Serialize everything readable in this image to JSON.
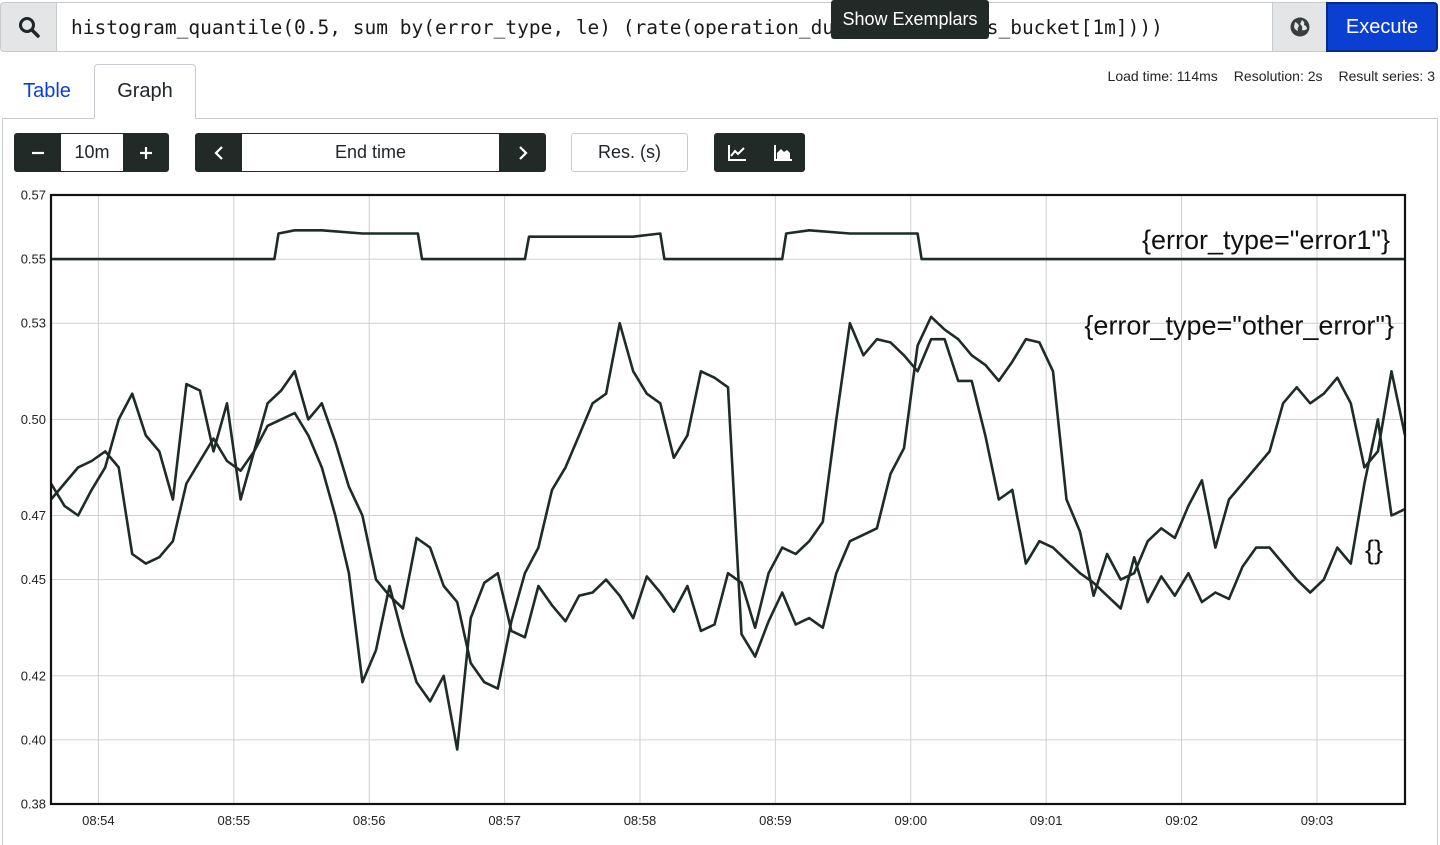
{
  "query": {
    "expression": "histogram_quantile(0.5, sum by(error_type, le) (rate(operation_duration_seconds_bucket[1m])))",
    "execute_label": "Execute"
  },
  "tabs": [
    {
      "label": "Table"
    },
    {
      "label": "Graph"
    }
  ],
  "stats": {
    "load_time": "Load time: 114ms",
    "resolution": "Resolution: 2s",
    "result_series": "Result series: 3"
  },
  "controls": {
    "range_value": "10m",
    "end_time_placeholder": "End time",
    "resolution_placeholder": "Res. (s)",
    "exemplars_label": "Show Exemplars"
  },
  "icons": {
    "search": "search-icon",
    "globe": "globe-icon",
    "minus": "minus-icon",
    "plus": "plus-icon",
    "prev": "chevron-left-icon",
    "next": "chevron-right-icon",
    "line": "line-chart-icon",
    "area": "area-chart-icon"
  },
  "colors": {
    "execute": "#0b3fd1",
    "tab_link": "#0b3fd1",
    "dark_button": "#222a28",
    "series_line": "#1f2b26"
  },
  "chart_data": {
    "type": "line",
    "ylim": [
      0.38,
      0.57
    ],
    "y_ticks": [
      0.57,
      0.55,
      0.53,
      0.5,
      0.47,
      0.45,
      0.42,
      0.4,
      0.38
    ],
    "y_tick_labels": [
      "0.57",
      "0.55",
      "0.53",
      "0.50",
      "0.47",
      "0.45",
      "0.42",
      "0.40",
      "0.38"
    ],
    "x_range": [
      "08:53:39",
      "08:53:49"
    ],
    "x_ticks": [
      "08:54",
      "08:55",
      "08:56",
      "08:57",
      "08:58",
      "08:59",
      "09:00",
      "09:01",
      "09:02",
      "09:03"
    ],
    "x_tick_minutes": [
      0.35,
      1.35,
      2.35,
      3.35,
      4.35,
      5.35,
      6.35,
      7.35,
      8.35,
      9.35
    ],
    "x_max_minutes": 10.0,
    "grid": true,
    "legend": "none",
    "series": [
      {
        "name": "{error_type=\"error1\"}",
        "t": [
          0.0,
          1.65,
          1.68,
          1.8,
          2.0,
          2.3,
          2.6,
          2.71,
          2.74,
          3.2,
          3.5,
          3.53,
          3.7,
          4.0,
          4.3,
          4.5,
          4.53,
          4.9,
          5.4,
          5.43,
          5.6,
          5.9,
          6.2,
          6.4,
          6.43,
          7.0,
          8.0,
          9.0,
          10.0
        ],
        "values": [
          0.55,
          0.55,
          0.558,
          0.559,
          0.559,
          0.558,
          0.558,
          0.558,
          0.55,
          0.55,
          0.55,
          0.557,
          0.557,
          0.557,
          0.557,
          0.558,
          0.55,
          0.55,
          0.55,
          0.558,
          0.559,
          0.558,
          0.558,
          0.558,
          0.55,
          0.55,
          0.55,
          0.55,
          0.55
        ]
      },
      {
        "name": "{error_type=\"other_error\"}",
        "t": [
          0.0,
          0.1,
          0.2,
          0.3,
          0.4,
          0.5,
          0.6,
          0.7,
          0.8,
          0.9,
          1.0,
          1.1,
          1.2,
          1.3,
          1.4,
          1.5,
          1.6,
          1.7,
          1.8,
          1.9,
          2.0,
          2.1,
          2.2,
          2.3,
          2.4,
          2.5,
          2.6,
          2.7,
          2.8,
          2.9,
          3.0,
          3.1,
          3.2,
          3.3,
          3.4,
          3.5,
          3.6,
          3.7,
          3.8,
          3.9,
          4.0,
          4.1,
          4.2,
          4.3,
          4.4,
          4.5,
          4.6,
          4.7,
          4.8,
          4.9,
          5.0,
          5.1,
          5.2,
          5.3,
          5.4,
          5.5,
          5.6,
          5.7,
          5.8,
          5.9,
          6.0,
          6.1,
          6.2,
          6.3,
          6.4,
          6.5,
          6.6,
          6.7,
          6.8,
          6.9,
          7.0,
          7.1,
          7.2,
          7.3,
          7.4,
          7.5,
          7.6,
          7.7,
          7.8,
          7.9,
          8.0,
          8.1,
          8.2,
          8.3,
          8.4,
          8.5,
          8.6,
          8.7,
          8.8,
          8.9,
          9.0,
          9.1,
          9.2,
          9.3,
          9.4,
          9.5,
          9.6,
          9.7,
          9.8,
          9.9,
          10.0
        ],
        "values": [
          0.475,
          0.48,
          0.485,
          0.487,
          0.49,
          0.485,
          0.458,
          0.455,
          0.457,
          0.462,
          0.48,
          0.487,
          0.494,
          0.487,
          0.484,
          0.49,
          0.498,
          0.5,
          0.502,
          0.495,
          0.485,
          0.47,
          0.452,
          0.418,
          0.428,
          0.448,
          0.432,
          0.418,
          0.412,
          0.42,
          0.397,
          0.438,
          0.449,
          0.452,
          0.434,
          0.432,
          0.448,
          0.442,
          0.437,
          0.445,
          0.446,
          0.45,
          0.445,
          0.438,
          0.451,
          0.446,
          0.44,
          0.448,
          0.434,
          0.436,
          0.452,
          0.449,
          0.435,
          0.452,
          0.46,
          0.458,
          0.462,
          0.468,
          0.5,
          0.53,
          0.52,
          0.525,
          0.524,
          0.52,
          0.515,
          0.525,
          0.525,
          0.512,
          0.512,
          0.495,
          0.475,
          0.478,
          0.455,
          0.462,
          0.46,
          0.456,
          0.452,
          0.449,
          0.445,
          0.441,
          0.457,
          0.443,
          0.451,
          0.445,
          0.452,
          0.443,
          0.446,
          0.444,
          0.454,
          0.46,
          0.46,
          0.455,
          0.45,
          0.446,
          0.45,
          0.46,
          0.455,
          0.48,
          0.5,
          0.47,
          0.472
        ]
      },
      {
        "name": "{}",
        "t": [
          0.0,
          0.1,
          0.2,
          0.3,
          0.4,
          0.5,
          0.6,
          0.7,
          0.8,
          0.9,
          1.0,
          1.1,
          1.2,
          1.3,
          1.4,
          1.5,
          1.6,
          1.7,
          1.8,
          1.9,
          2.0,
          2.1,
          2.2,
          2.3,
          2.4,
          2.5,
          2.6,
          2.7,
          2.8,
          2.9,
          3.0,
          3.1,
          3.2,
          3.3,
          3.4,
          3.5,
          3.6,
          3.7,
          3.8,
          3.9,
          4.0,
          4.1,
          4.2,
          4.3,
          4.4,
          4.5,
          4.6,
          4.7,
          4.8,
          4.9,
          5.0,
          5.1,
          5.2,
          5.3,
          5.4,
          5.5,
          5.6,
          5.7,
          5.8,
          5.9,
          6.0,
          6.1,
          6.2,
          6.3,
          6.4,
          6.5,
          6.6,
          6.7,
          6.8,
          6.9,
          7.0,
          7.1,
          7.2,
          7.3,
          7.4,
          7.5,
          7.6,
          7.7,
          7.8,
          7.9,
          8.0,
          8.1,
          8.2,
          8.3,
          8.4,
          8.5,
          8.6,
          8.7,
          8.8,
          8.9,
          9.0,
          9.1,
          9.2,
          9.3,
          9.4,
          9.5,
          9.6,
          9.7,
          9.8,
          9.9,
          10.0
        ],
        "values": [
          0.48,
          0.473,
          0.47,
          0.478,
          0.485,
          0.5,
          0.508,
          0.495,
          0.49,
          0.475,
          0.511,
          0.509,
          0.49,
          0.505,
          0.475,
          0.49,
          0.505,
          0.509,
          0.515,
          0.5,
          0.505,
          0.493,
          0.479,
          0.47,
          0.45,
          0.445,
          0.441,
          0.463,
          0.46,
          0.448,
          0.443,
          0.424,
          0.418,
          0.416,
          0.437,
          0.452,
          0.46,
          0.478,
          0.485,
          0.495,
          0.505,
          0.508,
          0.53,
          0.515,
          0.508,
          0.505,
          0.488,
          0.495,
          0.515,
          0.513,
          0.51,
          0.433,
          0.426,
          0.437,
          0.446,
          0.436,
          0.438,
          0.435,
          0.452,
          0.462,
          0.464,
          0.466,
          0.483,
          0.491,
          0.523,
          0.532,
          0.528,
          0.525,
          0.52,
          0.517,
          0.512,
          0.518,
          0.525,
          0.524,
          0.515,
          0.475,
          0.465,
          0.445,
          0.458,
          0.45,
          0.452,
          0.462,
          0.466,
          0.463,
          0.473,
          0.481,
          0.46,
          0.475,
          0.48,
          0.485,
          0.49,
          0.505,
          0.51,
          0.505,
          0.508,
          0.513,
          0.505,
          0.485,
          0.49,
          0.515,
          0.495
        ]
      }
    ]
  }
}
